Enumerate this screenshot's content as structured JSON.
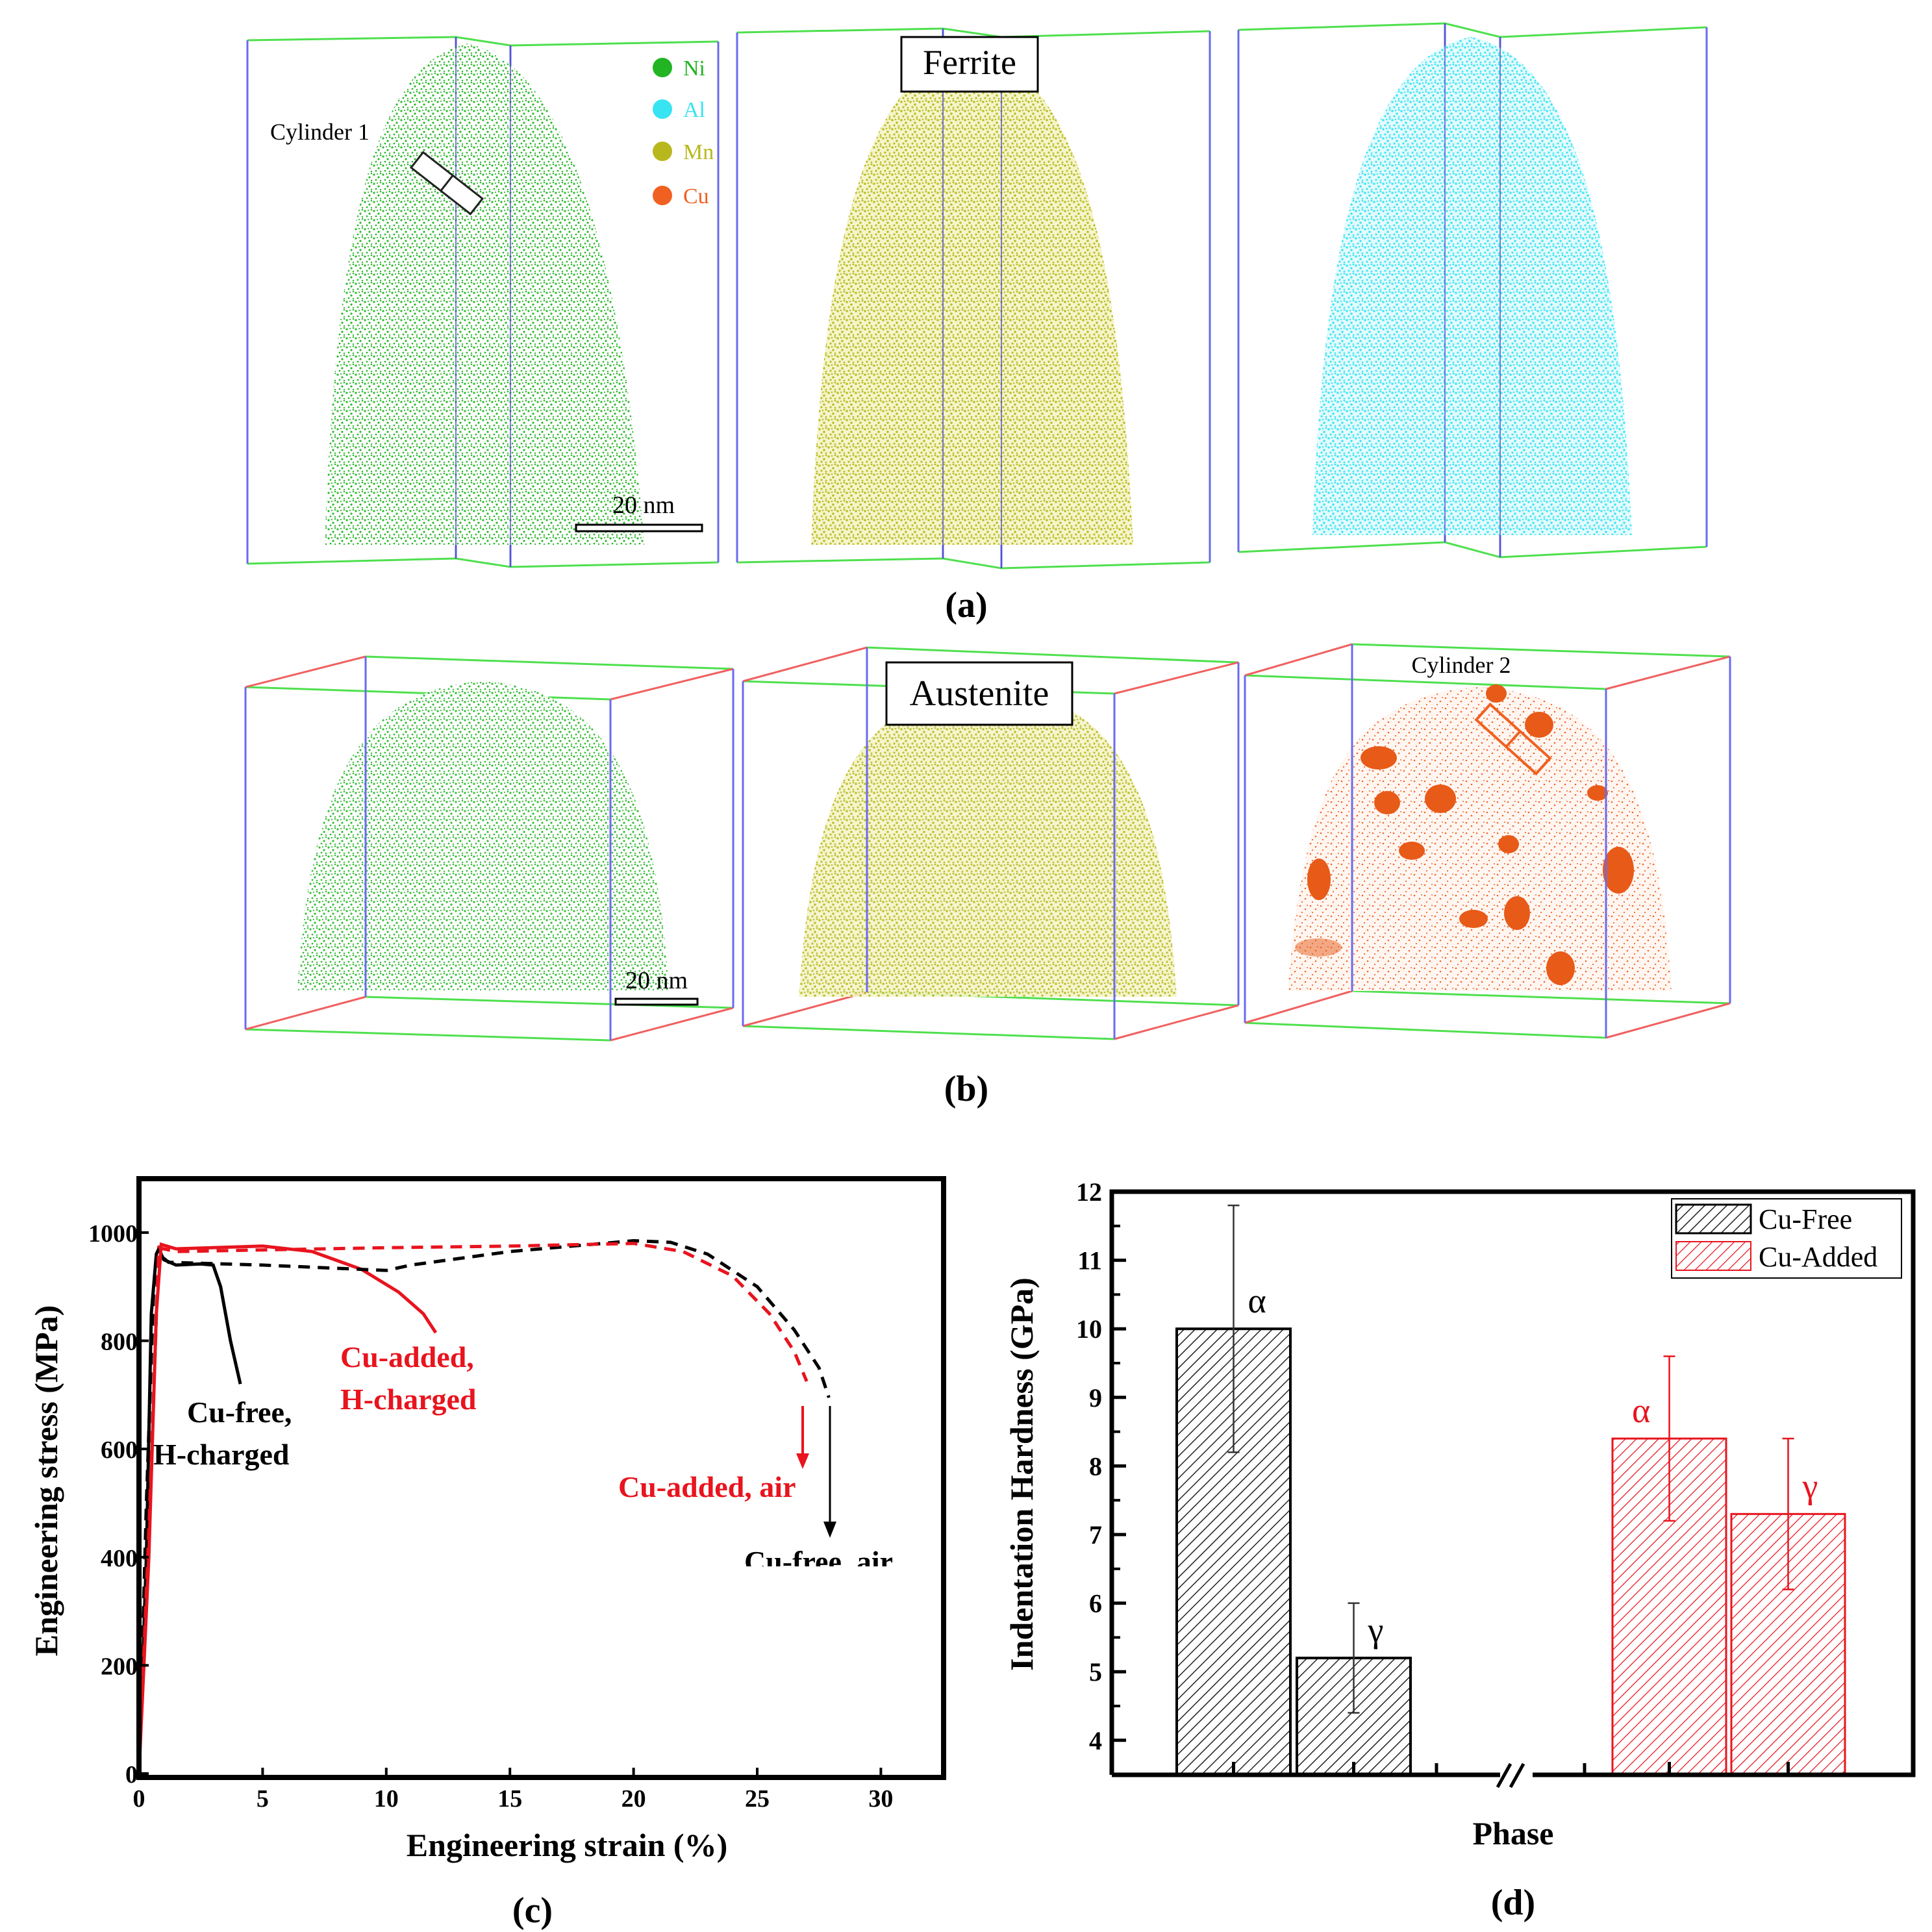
{
  "colors": {
    "ni": "#22b422",
    "al": "#38e4f2",
    "mn": "#b8b81e",
    "cu": "#f06020",
    "red": "#e8141e",
    "black": "#000000"
  },
  "panel_a": {
    "caption": "(a)",
    "phase_label": "Ferrite",
    "cylinder_label": "Cylinder 1",
    "scale_bar": "20 nm",
    "legend": [
      {
        "label": "Ni",
        "color": "#22b422"
      },
      {
        "label": "Al",
        "color": "#38e4f2"
      },
      {
        "label": "Mn",
        "color": "#b8b81e"
      },
      {
        "label": "Cu",
        "color": "#f06020"
      }
    ]
  },
  "panel_b": {
    "caption": "(b)",
    "phase_label": "Austenite",
    "cylinder_label": "Cylinder 2",
    "scale_bar": "20 nm"
  },
  "chart_data": [
    {
      "type": "line",
      "panel": "(c)",
      "xlabel": "Engineering strain (%)",
      "ylabel": "Engineering stress (MPa)",
      "xlim": [
        0,
        32.5
      ],
      "ylim": [
        0,
        1100
      ],
      "xticks": [
        0,
        5,
        10,
        15,
        20,
        25,
        30
      ],
      "yticks": [
        0,
        200,
        400,
        600,
        800,
        1000
      ],
      "grid": false,
      "series": [
        {
          "name": "Cu-free, H-charged",
          "label_lines": [
            "Cu-free,",
            "H-charged"
          ],
          "color": "#000000",
          "dash": false,
          "points": [
            [
              0,
              0
            ],
            [
              0.3,
              400
            ],
            [
              0.5,
              850
            ],
            [
              0.7,
              960
            ],
            [
              0.8,
              970
            ],
            [
              1.0,
              950
            ],
            [
              1.5,
              940
            ],
            [
              2.5,
              942
            ],
            [
              3.0,
              940
            ],
            [
              3.3,
              900
            ],
            [
              3.7,
              800
            ],
            [
              4.1,
              720
            ]
          ]
        },
        {
          "name": "Cu-added, H-charged",
          "label_lines": [
            "Cu-added,",
            "H-charged"
          ],
          "color": "#e8141e",
          "dash": false,
          "points": [
            [
              0,
              0
            ],
            [
              0.4,
              400
            ],
            [
              0.7,
              850
            ],
            [
              0.9,
              978
            ],
            [
              1.5,
              970
            ],
            [
              5,
              975
            ],
            [
              7,
              965
            ],
            [
              9,
              932
            ],
            [
              10.5,
              890
            ],
            [
              11.5,
              850
            ],
            [
              12,
              815
            ]
          ]
        },
        {
          "name": "Cu-free, air",
          "label_lines": [
            "Cu-free, air"
          ],
          "color": "#000000",
          "dash": true,
          "points": [
            [
              0,
              0
            ],
            [
              0.3,
              500
            ],
            [
              0.6,
              900
            ],
            [
              0.8,
              960
            ],
            [
              1.2,
              945
            ],
            [
              5,
              940
            ],
            [
              10,
              930
            ],
            [
              11,
              940
            ],
            [
              15,
              965
            ],
            [
              20,
              985
            ],
            [
              21.5,
              982
            ],
            [
              23,
              960
            ],
            [
              25,
              900
            ],
            [
              26.5,
              820
            ],
            [
              27.5,
              750
            ],
            [
              27.9,
              695
            ]
          ]
        },
        {
          "name": "Cu-added, air",
          "label_lines": [
            "Cu-added, air"
          ],
          "color": "#e8141e",
          "dash": true,
          "points": [
            [
              0,
              0
            ],
            [
              0.4,
              450
            ],
            [
              0.8,
              972
            ],
            [
              1.5,
              965
            ],
            [
              5,
              968
            ],
            [
              10,
              972
            ],
            [
              15,
              975
            ],
            [
              20,
              980
            ],
            [
              22,
              965
            ],
            [
              24,
              920
            ],
            [
              25.5,
              850
            ],
            [
              26.5,
              780
            ],
            [
              27.0,
              725
            ]
          ]
        }
      ]
    },
    {
      "type": "bar",
      "panel": "(d)",
      "xlabel": "Phase",
      "ylabel": "Indentation Hardness (GPa)",
      "ylim": [
        3.5,
        12
      ],
      "yticks": [
        4,
        5,
        6,
        7,
        8,
        9,
        10,
        11,
        12
      ],
      "grid": false,
      "legend_position": "top-right",
      "categories": [
        "α",
        "γ"
      ],
      "series": [
        {
          "name": "Cu-Free",
          "color": "#000000",
          "values": [
            10.0,
            5.2
          ],
          "errors_low": [
            8.2,
            4.4
          ],
          "errors_high": [
            11.8,
            6.0
          ]
        },
        {
          "name": "Cu-Added",
          "color": "#e8141e",
          "values": [
            8.4,
            7.3
          ],
          "errors_low": [
            7.2,
            6.2
          ],
          "errors_high": [
            9.6,
            8.4
          ]
        }
      ]
    }
  ]
}
